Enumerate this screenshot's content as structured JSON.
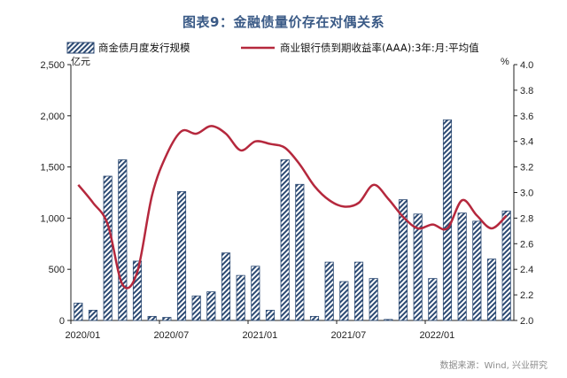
{
  "title": "图表9：金融债量价存在对偶关系",
  "source": "数据来源：Wind, 兴业研究",
  "chart_data": {
    "type": "bar+line",
    "categories": [
      "2020/01",
      "2020/02",
      "2020/03",
      "2020/04",
      "2020/05",
      "2020/06",
      "2020/07",
      "2020/08",
      "2020/09",
      "2020/10",
      "2020/11",
      "2020/12",
      "2021/01",
      "2021/02",
      "2021/03",
      "2021/04",
      "2021/05",
      "2021/06",
      "2021/07",
      "2021/08",
      "2021/09",
      "2021/10",
      "2021/11",
      "2021/12",
      "2022/01",
      "2022/02",
      "2022/03",
      "2022/04",
      "2022/05",
      "2022/06"
    ],
    "x_tick_labels": [
      "2020/01",
      "2020/07",
      "2021/01",
      "2021/07",
      "2022/01"
    ],
    "series": [
      {
        "name": "商金债月度发行规模",
        "axis": "left",
        "kind": "bar",
        "values": [
          170,
          100,
          1410,
          1570,
          580,
          40,
          30,
          1260,
          240,
          280,
          660,
          440,
          530,
          100,
          1570,
          1330,
          40,
          570,
          380,
          570,
          410,
          10,
          1180,
          1040,
          410,
          1960,
          1050,
          970,
          600,
          1070
        ]
      },
      {
        "name": "商业银行债到期收益率(AAA):3年:月:平均值",
        "axis": "right",
        "kind": "line",
        "values": [
          3.06,
          2.92,
          2.75,
          2.28,
          2.38,
          2.98,
          3.3,
          3.48,
          3.46,
          3.52,
          3.46,
          3.33,
          3.4,
          3.38,
          3.35,
          3.22,
          3.05,
          2.94,
          2.89,
          2.92,
          3.06,
          2.95,
          2.81,
          2.72,
          2.75,
          2.72,
          2.94,
          2.82,
          2.72,
          2.82
        ]
      }
    ],
    "left_axis": {
      "min": 0,
      "max": 2500,
      "ticks": [
        0,
        500,
        1000,
        1500,
        2000,
        2500
      ],
      "tick_labels": [
        "0",
        "500",
        "1,000",
        "1,500",
        "2,000",
        "2,500"
      ],
      "unit": "亿元"
    },
    "right_axis": {
      "min": 2.0,
      "max": 4.0,
      "ticks": [
        2.0,
        2.2,
        2.4,
        2.6,
        2.8,
        3.0,
        3.2,
        3.4,
        3.6,
        3.8,
        4.0
      ],
      "tick_labels": [
        "2.0",
        "2.2",
        "2.4",
        "2.6",
        "2.8",
        "3.0",
        "3.2",
        "3.4",
        "3.6",
        "3.8",
        "4.0"
      ],
      "unit": "%"
    },
    "grid": false,
    "legend_position": "top",
    "colors": {
      "bar_fill": "#2c4a73",
      "bar_hatch_bg": "#ffffff",
      "line": "#b5283d",
      "title": "#3a5a86"
    }
  }
}
